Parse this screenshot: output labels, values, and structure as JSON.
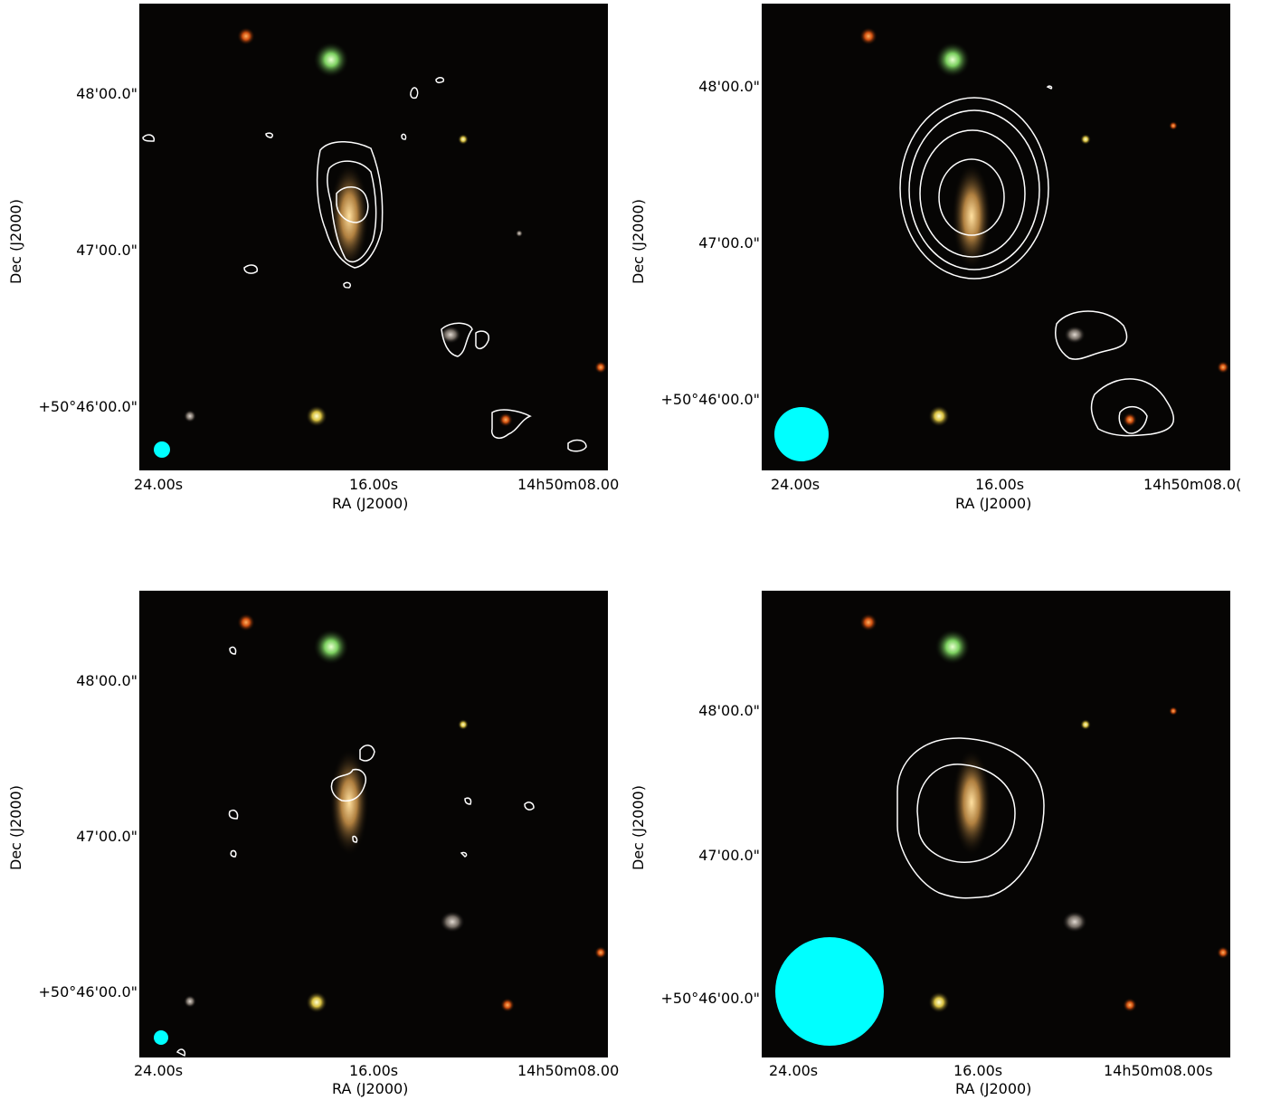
{
  "panels": [
    {
      "id": "top-left",
      "ra_ticks": [
        "24.00s",
        "16.00s",
        "14h50m08.00"
      ],
      "dec_ticks": [
        "48'00.0\"",
        "47'00.0\"",
        "+50°46'00.0\""
      ],
      "xlabel": "RA (J2000)",
      "ylabel": "Dec (J2000)",
      "beam_color": "#00ffff"
    },
    {
      "id": "top-right",
      "ra_ticks": [
        "24.00s",
        "16.00s",
        "14h50m08.0("
      ],
      "dec_ticks": [
        "48'00.0\"",
        "47'00.0\"",
        "+50°46'00.0\""
      ],
      "xlabel": "RA (J2000)",
      "ylabel": "Dec (J2000)",
      "beam_color": "#00ffff"
    },
    {
      "id": "bottom-left",
      "ra_ticks": [
        "24.00s",
        "16.00s",
        "14h50m08.00"
      ],
      "dec_ticks": [
        "48'00.0\"",
        "47'00.0\"",
        "+50°46'00.0\""
      ],
      "xlabel": "RA (J2000)",
      "ylabel": "Dec (J2000)",
      "beam_color": "#00ffff"
    },
    {
      "id": "bottom-right",
      "ra_ticks": [
        "24.00s",
        "16.00s",
        "14h50m08.00s"
      ],
      "dec_ticks": [
        "48'00.0\"",
        "47'00.0\"",
        "+50°46'00.0\""
      ],
      "xlabel": "RA (J2000)",
      "ylabel": "Dec (J2000)",
      "beam_color": "#00ffff"
    }
  ],
  "contour_color": "#ffffff"
}
